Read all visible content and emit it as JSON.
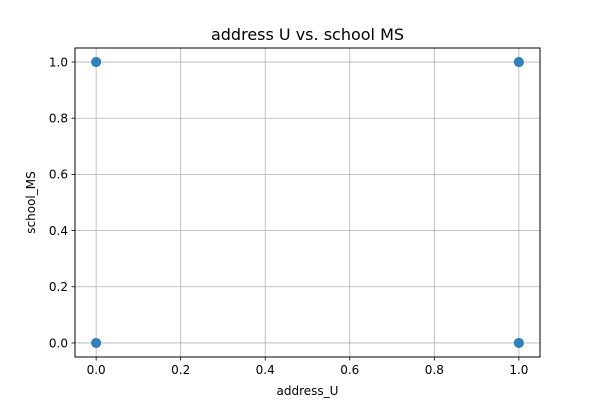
{
  "chart_data": {
    "type": "scatter",
    "title": "address U vs. school MS",
    "xlabel": "address_U",
    "ylabel": "school_MS",
    "xlim": [
      -0.05,
      1.05
    ],
    "ylim": [
      -0.05,
      1.05
    ],
    "xticks": [
      0.0,
      0.2,
      0.4,
      0.6,
      0.8,
      1.0
    ],
    "yticks": [
      0.0,
      0.2,
      0.4,
      0.6,
      0.8,
      1.0
    ],
    "xtick_labels": [
      "0.0",
      "0.2",
      "0.4",
      "0.6",
      "0.8",
      "1.0"
    ],
    "ytick_labels": [
      "0.0",
      "0.2",
      "0.4",
      "0.6",
      "0.8",
      "1.0"
    ],
    "grid": true,
    "series": [
      {
        "name": "address_U vs school_MS",
        "color": "#1f77b4",
        "points": [
          {
            "x": 0,
            "y": 1
          },
          {
            "x": 1,
            "y": 1
          },
          {
            "x": 0,
            "y": 0
          },
          {
            "x": 1,
            "y": 0
          }
        ]
      }
    ]
  }
}
